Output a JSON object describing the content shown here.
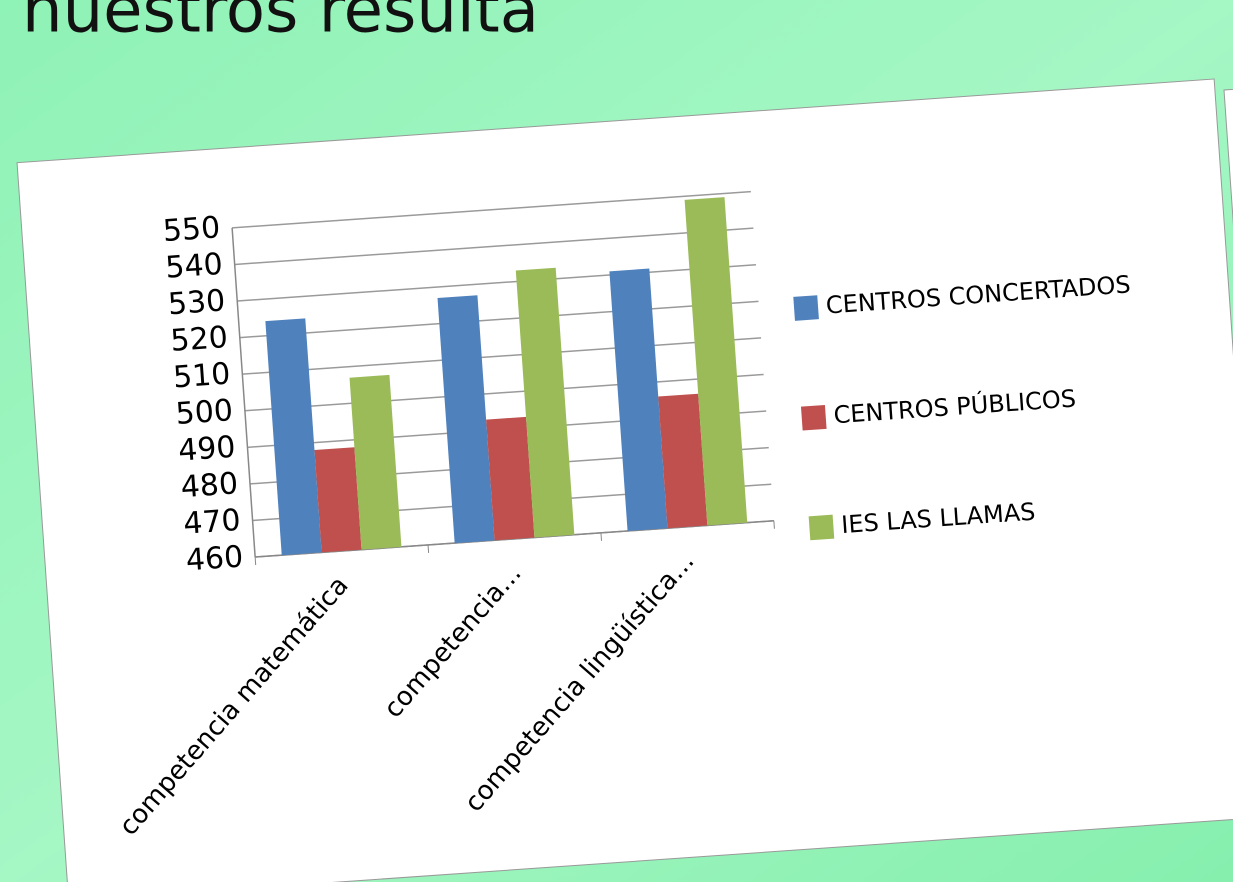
{
  "slide_title": "nuestros resulta",
  "chart_data": {
    "type": "bar",
    "categories": [
      "competencia matemática",
      "competencia...",
      "competencia lingüística..."
    ],
    "series": [
      {
        "name": "CENTROS CONCERTADOS",
        "color": "#4f81bd",
        "values": [
          524,
          527,
          531
        ]
      },
      {
        "name": "CENTROS PÚBLICOS",
        "color": "#c0504d",
        "values": [
          488,
          493,
          496
        ]
      },
      {
        "name": "IES LAS LLAMAS",
        "color": "#9bbb59",
        "values": [
          507,
          533,
          549
        ]
      }
    ],
    "ylim": [
      460,
      550
    ],
    "yticks": [
      460,
      470,
      480,
      490,
      500,
      510,
      520,
      530,
      540,
      550
    ],
    "grid": true,
    "legend": "right"
  }
}
